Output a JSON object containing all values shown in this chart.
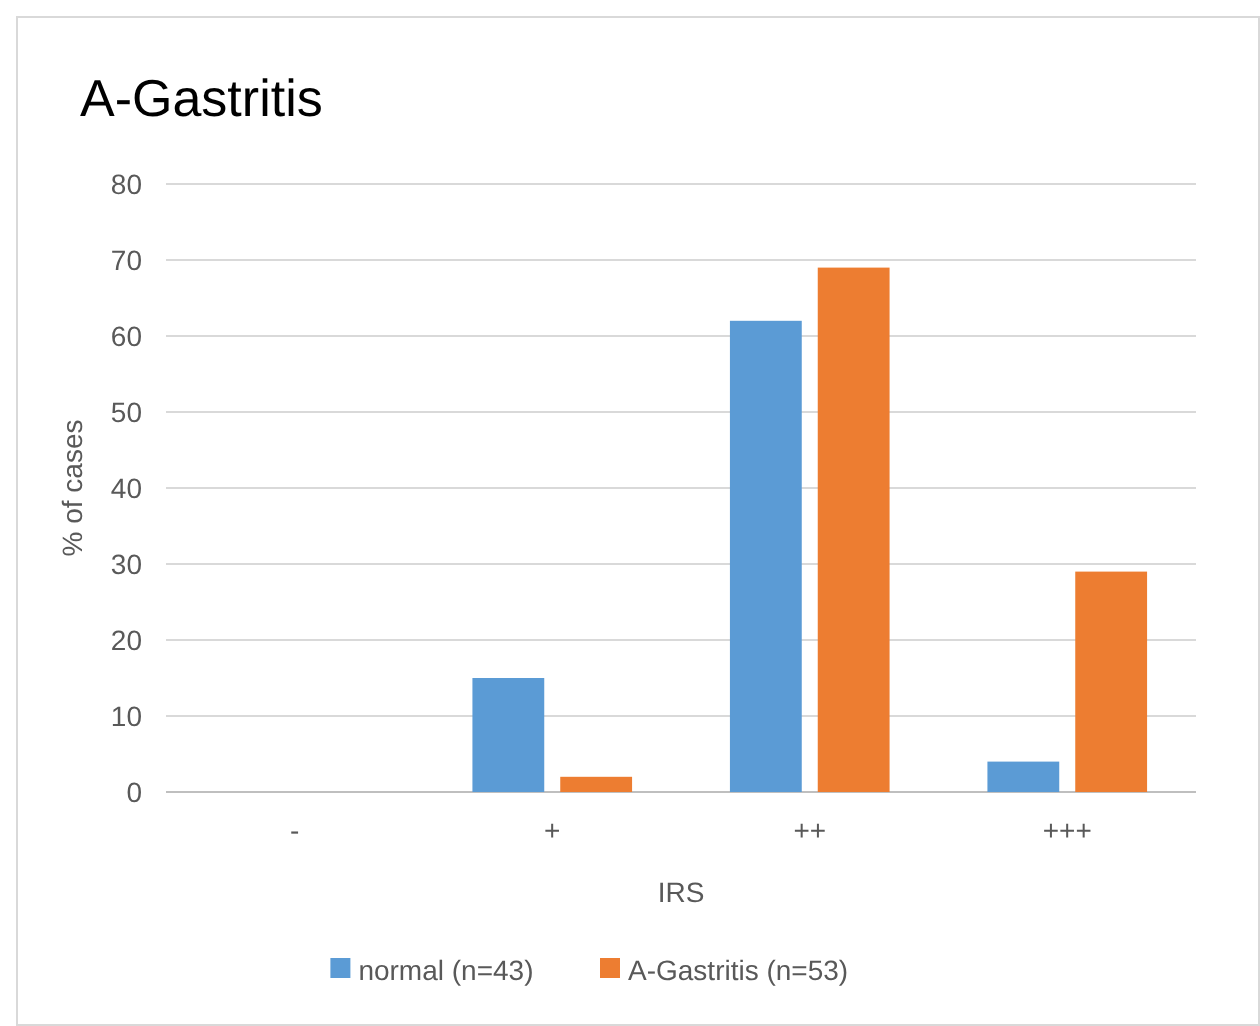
{
  "chart_data": {
    "type": "bar",
    "title": "A-Gastritis",
    "xlabel": "IRS",
    "ylabel": "% of cases",
    "categories": [
      "-",
      "+",
      "++",
      "+++"
    ],
    "series": [
      {
        "name": "normal (n=43)",
        "color": "#5b9bd5",
        "values": [
          0,
          15,
          62,
          4
        ]
      },
      {
        "name": "A-Gastritis (n=53)",
        "color": "#ed7d31",
        "values": [
          0,
          2,
          69,
          29
        ]
      }
    ],
    "ylim": [
      0,
      80
    ],
    "yticks": [
      0,
      10,
      20,
      30,
      40,
      50,
      60,
      70,
      80
    ],
    "grid": "y",
    "legend": "bottom"
  }
}
